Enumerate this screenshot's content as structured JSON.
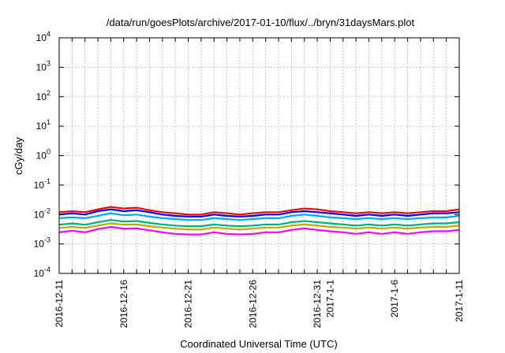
{
  "chart_data": {
    "type": "line",
    "title": "/data/run/goesPlots/archive/2017-01-10/flux/../bryn/31daysMars.plot",
    "xlabel": "Coordinated Universal Time (UTC)",
    "ylabel": "cGy/day",
    "y_scale": "log",
    "ylim": [
      0.0001,
      10000
    ],
    "xlim": [
      "2016-12-11",
      "2017-01-11"
    ],
    "grid": true,
    "legend": "none",
    "x_tick_labels": [
      "2016-12-11",
      "2016-12-16",
      "2016-12-21",
      "2016-12-26",
      "2016-12-31",
      "2017-1-1",
      "2017-1-6",
      "2017-1-11"
    ],
    "x_tick_dates": [
      "2016-12-11",
      "2016-12-16",
      "2016-12-21",
      "2016-12-26",
      "2016-12-31",
      "2017-01-01",
      "2017-01-06",
      "2017-01-11"
    ],
    "y_tick_labels": [
      {
        "base": "10",
        "exp": "4",
        "value": 10000
      },
      {
        "base": "10",
        "exp": "3",
        "value": 1000
      },
      {
        "base": "10",
        "exp": "2",
        "value": 100
      },
      {
        "base": "10",
        "exp": "1",
        "value": 10
      },
      {
        "base": "10",
        "exp": "0",
        "value": 1
      },
      {
        "base": "10",
        "exp": "-1",
        "value": 0.1
      },
      {
        "base": "10",
        "exp": "-2",
        "value": 0.01
      },
      {
        "base": "10",
        "exp": "-3",
        "value": 0.001
      },
      {
        "base": "10",
        "exp": "-4",
        "value": 0.0001
      }
    ],
    "x": [
      "2016-12-11",
      "2016-12-12",
      "2016-12-13",
      "2016-12-14",
      "2016-12-15",
      "2016-12-16",
      "2016-12-17",
      "2016-12-18",
      "2016-12-19",
      "2016-12-20",
      "2016-12-21",
      "2016-12-22",
      "2016-12-23",
      "2016-12-24",
      "2016-12-25",
      "2016-12-26",
      "2016-12-27",
      "2016-12-28",
      "2016-12-29",
      "2016-12-30",
      "2016-12-31",
      "2017-01-01",
      "2017-01-02",
      "2017-01-03",
      "2017-01-04",
      "2017-01-05",
      "2017-01-06",
      "2017-01-07",
      "2017-01-08",
      "2017-01-09",
      "2017-01-10",
      "2017-01-11"
    ],
    "series": [
      {
        "color": "#ff0000",
        "values": [
          0.012,
          0.013,
          0.012,
          0.015,
          0.018,
          0.016,
          0.017,
          0.014,
          0.012,
          0.011,
          0.01,
          0.01,
          0.012,
          0.011,
          0.01,
          0.011,
          0.012,
          0.012,
          0.014,
          0.016,
          0.015,
          0.013,
          0.012,
          0.011,
          0.012,
          0.011,
          0.012,
          0.011,
          0.012,
          0.013,
          0.013,
          0.015
        ]
      },
      {
        "color": "#0000ff",
        "values": [
          0.01,
          0.011,
          0.01,
          0.013,
          0.015,
          0.013,
          0.014,
          0.012,
          0.01,
          0.009,
          0.0085,
          0.0085,
          0.01,
          0.009,
          0.0085,
          0.009,
          0.01,
          0.01,
          0.012,
          0.013,
          0.012,
          0.011,
          0.01,
          0.009,
          0.01,
          0.009,
          0.01,
          0.009,
          0.01,
          0.011,
          0.011,
          0.012
        ]
      },
      {
        "color": "#00aaff",
        "values": [
          0.0075,
          0.008,
          0.0075,
          0.009,
          0.011,
          0.0095,
          0.01,
          0.0085,
          0.0075,
          0.007,
          0.0065,
          0.0065,
          0.0075,
          0.007,
          0.0065,
          0.007,
          0.0075,
          0.0075,
          0.009,
          0.01,
          0.009,
          0.008,
          0.0075,
          0.007,
          0.0075,
          0.007,
          0.0075,
          0.007,
          0.0075,
          0.008,
          0.008,
          0.009
        ]
      },
      {
        "color": "#00b080",
        "values": [
          0.0045,
          0.005,
          0.0045,
          0.0055,
          0.0065,
          0.0058,
          0.006,
          0.0052,
          0.0046,
          0.0042,
          0.004,
          0.004,
          0.0046,
          0.0042,
          0.004,
          0.0042,
          0.0046,
          0.0046,
          0.0055,
          0.006,
          0.0055,
          0.005,
          0.0046,
          0.0042,
          0.0046,
          0.0042,
          0.0046,
          0.0042,
          0.0046,
          0.005,
          0.005,
          0.0055
        ]
      },
      {
        "color": "#b0b000",
        "values": [
          0.0035,
          0.0038,
          0.0035,
          0.0042,
          0.005,
          0.0045,
          0.0046,
          0.004,
          0.0036,
          0.0033,
          0.0031,
          0.0031,
          0.0036,
          0.0033,
          0.0031,
          0.0033,
          0.0036,
          0.0036,
          0.0042,
          0.0046,
          0.0042,
          0.0038,
          0.0036,
          0.0033,
          0.0036,
          0.0033,
          0.0036,
          0.0033,
          0.0036,
          0.0038,
          0.0038,
          0.0042
        ]
      },
      {
        "color": "#ff00ff",
        "values": [
          0.0025,
          0.0028,
          0.0025,
          0.0032,
          0.0038,
          0.0033,
          0.0034,
          0.0029,
          0.0025,
          0.0022,
          0.0021,
          0.0021,
          0.0025,
          0.0022,
          0.0021,
          0.0022,
          0.0025,
          0.0025,
          0.003,
          0.0034,
          0.003,
          0.0027,
          0.0025,
          0.0022,
          0.0025,
          0.0022,
          0.0025,
          0.0022,
          0.0025,
          0.0027,
          0.0027,
          0.003
        ]
      }
    ]
  }
}
